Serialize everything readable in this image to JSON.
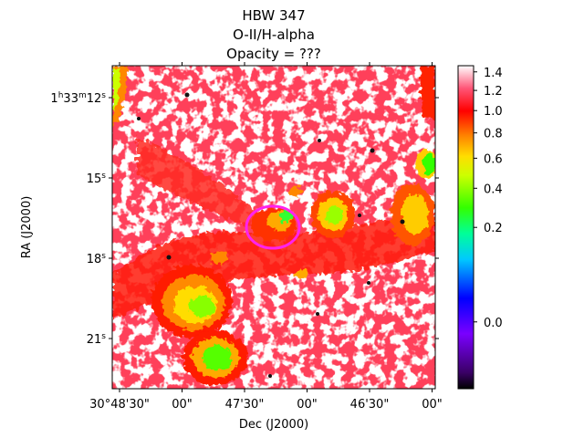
{
  "chart_data": {
    "type": "heatmap",
    "title_lines": [
      "HBW 347",
      "O-II/H-alpha",
      "Opacity = ???"
    ],
    "xlabel": "Dec (J2000)",
    "ylabel": "RA (J2000)",
    "x_ticks": [
      "30°48'30\"",
      "00\"",
      "47'30\"",
      "00\"",
      "46'30\"",
      "00\""
    ],
    "y_ticks": [
      {
        "main": "1",
        "sup1": "h",
        "mid": "33",
        "sup2": "m",
        "sec": "12",
        "sup3": "s"
      },
      {
        "main": "",
        "sup1": "",
        "mid": "",
        "sup2": "",
        "sec": "15",
        "sup3": "s"
      },
      {
        "main": "",
        "sup1": "",
        "mid": "",
        "sup2": "",
        "sec": "18",
        "sup3": "s"
      },
      {
        "main": "",
        "sup1": "",
        "mid": "",
        "sup2": "",
        "sec": "21",
        "sup3": "s"
      }
    ],
    "colorbar": {
      "scale": "sqrt",
      "range": [
        -0.1,
        1.47
      ],
      "ticks": [
        {
          "value": 0.0,
          "label": "0.0"
        },
        {
          "value": 0.2,
          "label": "0.2"
        },
        {
          "value": 0.4,
          "label": "0.4"
        },
        {
          "value": 0.6,
          "label": "0.6"
        },
        {
          "value": 0.8,
          "label": "0.8"
        },
        {
          "value": 1.0,
          "label": "1.0"
        },
        {
          "value": 1.2,
          "label": "1.2"
        },
        {
          "value": 1.4,
          "label": "1.4"
        }
      ],
      "colormap": "hsv-like (black, purple, blue, cyan, green, yellow, orange, red, pink, white)"
    },
    "annotations": [
      {
        "type": "ellipse",
        "color": "#ff22ee",
        "label": "region marker"
      }
    ]
  }
}
